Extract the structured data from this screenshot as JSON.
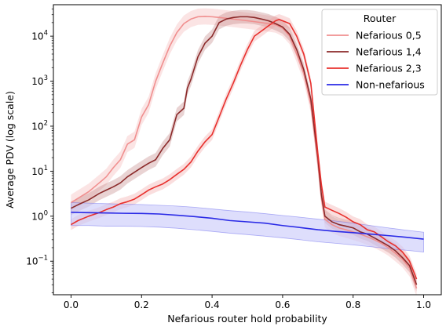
{
  "chart_data": {
    "type": "line",
    "title": "",
    "xlabel": "Nefarious router hold probability",
    "ylabel": "Average PDV (log scale)",
    "xscale": "linear",
    "yscale": "log",
    "xlim": [
      -0.05,
      1.05
    ],
    "ylim": [
      0.018,
      50000
    ],
    "x_ticks": [
      {
        "value": 0.0,
        "label": "0.0"
      },
      {
        "value": 0.2,
        "label": "0.2"
      },
      {
        "value": 0.4,
        "label": "0.4"
      },
      {
        "value": 0.6,
        "label": "0.6"
      },
      {
        "value": 0.8,
        "label": "0.8"
      },
      {
        "value": 1.0,
        "label": "1.0"
      }
    ],
    "y_ticks": [
      {
        "value": 0.1,
        "base": "10",
        "exp": "−1"
      },
      {
        "value": 1,
        "base": "10",
        "exp": "0"
      },
      {
        "value": 10,
        "base": "10",
        "exp": "1"
      },
      {
        "value": 100,
        "base": "10",
        "exp": "2"
      },
      {
        "value": 1000,
        "base": "10",
        "exp": "3"
      },
      {
        "value": 10000,
        "base": "10",
        "exp": "4"
      }
    ],
    "grid": false,
    "legend": {
      "title": "Router",
      "placement": "top-right"
    },
    "series": [
      {
        "name": "Nefarious 0,5",
        "color": "#f08f8f",
        "band_color": "#f4b3b3",
        "x": [
          0.0,
          0.02,
          0.05,
          0.08,
          0.1,
          0.12,
          0.14,
          0.16,
          0.18,
          0.2,
          0.22,
          0.24,
          0.26,
          0.28,
          0.3,
          0.32,
          0.34,
          0.36,
          0.38,
          0.4,
          0.42,
          0.44,
          0.46,
          0.48,
          0.5,
          0.52,
          0.54,
          0.56,
          0.58,
          0.6,
          0.62,
          0.64,
          0.66,
          0.68,
          0.7,
          0.71,
          0.72,
          0.74,
          0.76,
          0.78,
          0.8,
          0.82,
          0.84,
          0.86,
          0.88,
          0.9,
          0.92,
          0.94,
          0.96,
          0.98
        ],
        "y": [
          2.0,
          2.5,
          3.5,
          5.5,
          7.5,
          12,
          18,
          40,
          50,
          160,
          300,
          1000,
          2500,
          6000,
          12000,
          19000,
          24000,
          27000,
          27500,
          27000,
          26000,
          25000,
          24000,
          23000,
          22000,
          21000,
          20000,
          19000,
          18000,
          15000,
          10000,
          4000,
          1500,
          300,
          15,
          2.5,
          0.85,
          0.65,
          0.55,
          0.5,
          0.45,
          0.4,
          0.35,
          0.3,
          0.25,
          0.2,
          0.15,
          0.11,
          0.07,
          0.025
        ],
        "band_width": 0.18
      },
      {
        "name": "Nefarious 1,4",
        "color": "#8b2a2a",
        "band_color": "#c08080",
        "x": [
          0.0,
          0.02,
          0.05,
          0.08,
          0.1,
          0.12,
          0.14,
          0.16,
          0.18,
          0.2,
          0.22,
          0.24,
          0.26,
          0.28,
          0.3,
          0.32,
          0.33,
          0.34,
          0.36,
          0.38,
          0.4,
          0.42,
          0.44,
          0.46,
          0.48,
          0.5,
          0.52,
          0.54,
          0.56,
          0.58,
          0.6,
          0.62,
          0.64,
          0.66,
          0.68,
          0.7,
          0.71,
          0.72,
          0.74,
          0.76,
          0.78,
          0.8,
          0.82,
          0.84,
          0.86,
          0.88,
          0.9,
          0.92,
          0.94,
          0.96,
          0.98
        ],
        "y": [
          1.5,
          1.8,
          2.3,
          3.2,
          3.8,
          4.5,
          5.5,
          7.5,
          9.5,
          12,
          15,
          18,
          32,
          50,
          180,
          250,
          700,
          1100,
          3500,
          7000,
          10000,
          20000,
          24000,
          26000,
          27000,
          27000,
          26000,
          24000,
          22000,
          19000,
          16000,
          11000,
          5000,
          1800,
          400,
          20,
          3.0,
          1.0,
          0.75,
          0.65,
          0.6,
          0.55,
          0.45,
          0.4,
          0.33,
          0.27,
          0.22,
          0.17,
          0.12,
          0.08,
          0.03
        ],
        "band_width": 0.15
      },
      {
        "name": "Nefarious 2,3",
        "color": "#e8302d",
        "band_color": "#f2a0a0",
        "x": [
          0.0,
          0.02,
          0.05,
          0.08,
          0.1,
          0.12,
          0.14,
          0.16,
          0.18,
          0.2,
          0.22,
          0.24,
          0.26,
          0.28,
          0.3,
          0.32,
          0.34,
          0.36,
          0.38,
          0.4,
          0.42,
          0.44,
          0.46,
          0.48,
          0.5,
          0.52,
          0.54,
          0.56,
          0.58,
          0.59,
          0.6,
          0.62,
          0.64,
          0.66,
          0.68,
          0.7,
          0.71,
          0.72,
          0.74,
          0.76,
          0.78,
          0.8,
          0.82,
          0.84,
          0.86,
          0.88,
          0.9,
          0.92,
          0.94,
          0.96,
          0.98
        ],
        "y": [
          0.65,
          0.8,
          1.0,
          1.2,
          1.4,
          1.6,
          1.9,
          2.1,
          2.4,
          3.0,
          3.8,
          4.5,
          5.2,
          6.5,
          8.5,
          11,
          16,
          28,
          45,
          65,
          160,
          400,
          900,
          2200,
          5000,
          10000,
          13000,
          17000,
          22000,
          23500,
          22000,
          19000,
          10000,
          4000,
          900,
          25,
          5.0,
          1.6,
          1.35,
          1.15,
          0.95,
          0.75,
          0.65,
          0.5,
          0.45,
          0.35,
          0.27,
          0.22,
          0.16,
          0.1,
          0.04
        ],
        "band_width": 0.12
      },
      {
        "name": "Non-nefarious",
        "color": "#2a2ae6",
        "band_color": "#c8c8fa",
        "x": [
          0.0,
          0.05,
          0.1,
          0.15,
          0.2,
          0.25,
          0.3,
          0.35,
          0.4,
          0.45,
          0.5,
          0.55,
          0.6,
          0.65,
          0.7,
          0.75,
          0.8,
          0.85,
          0.9,
          0.95,
          1.0
        ],
        "y": [
          1.22,
          1.2,
          1.18,
          1.16,
          1.15,
          1.12,
          1.05,
          0.98,
          0.9,
          0.8,
          0.75,
          0.7,
          0.62,
          0.56,
          0.5,
          0.46,
          0.43,
          0.4,
          0.37,
          0.34,
          0.31
        ],
        "lower": [
          0.62,
          0.62,
          0.6,
          0.6,
          0.59,
          0.57,
          0.54,
          0.5,
          0.46,
          0.42,
          0.39,
          0.36,
          0.33,
          0.3,
          0.27,
          0.25,
          0.23,
          0.21,
          0.19,
          0.175,
          0.16
        ],
        "upper": [
          2.0,
          1.95,
          1.9,
          1.85,
          1.82,
          1.75,
          1.68,
          1.58,
          1.45,
          1.33,
          1.24,
          1.14,
          1.04,
          0.95,
          0.86,
          0.78,
          0.7,
          0.62,
          0.55,
          0.49,
          0.44
        ]
      }
    ]
  }
}
